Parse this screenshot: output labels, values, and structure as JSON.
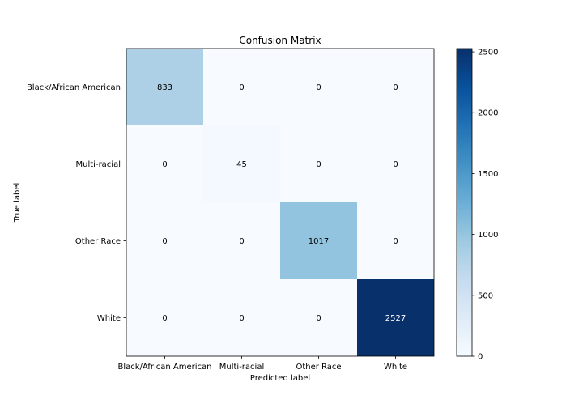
{
  "chart_data": {
    "type": "heatmap",
    "title": "Confusion Matrix",
    "xlabel": "Predicted label",
    "ylabel": "True label",
    "x_categories": [
      "Black/African American",
      "Multi-racial",
      "Other Race",
      "White"
    ],
    "y_categories": [
      "Black/African American",
      "Multi-racial",
      "Other Race",
      "White"
    ],
    "matrix": [
      [
        833,
        0,
        0,
        0
      ],
      [
        0,
        45,
        0,
        0
      ],
      [
        0,
        0,
        1017,
        0
      ],
      [
        0,
        0,
        0,
        2527
      ]
    ],
    "colormap": "Blues",
    "color_low": "#f7fbff",
    "color_high": "#08306b",
    "colorbar": {
      "min": 0,
      "max": 2527,
      "ticks": [
        0,
        500,
        1000,
        1500,
        2000,
        2500
      ]
    }
  }
}
